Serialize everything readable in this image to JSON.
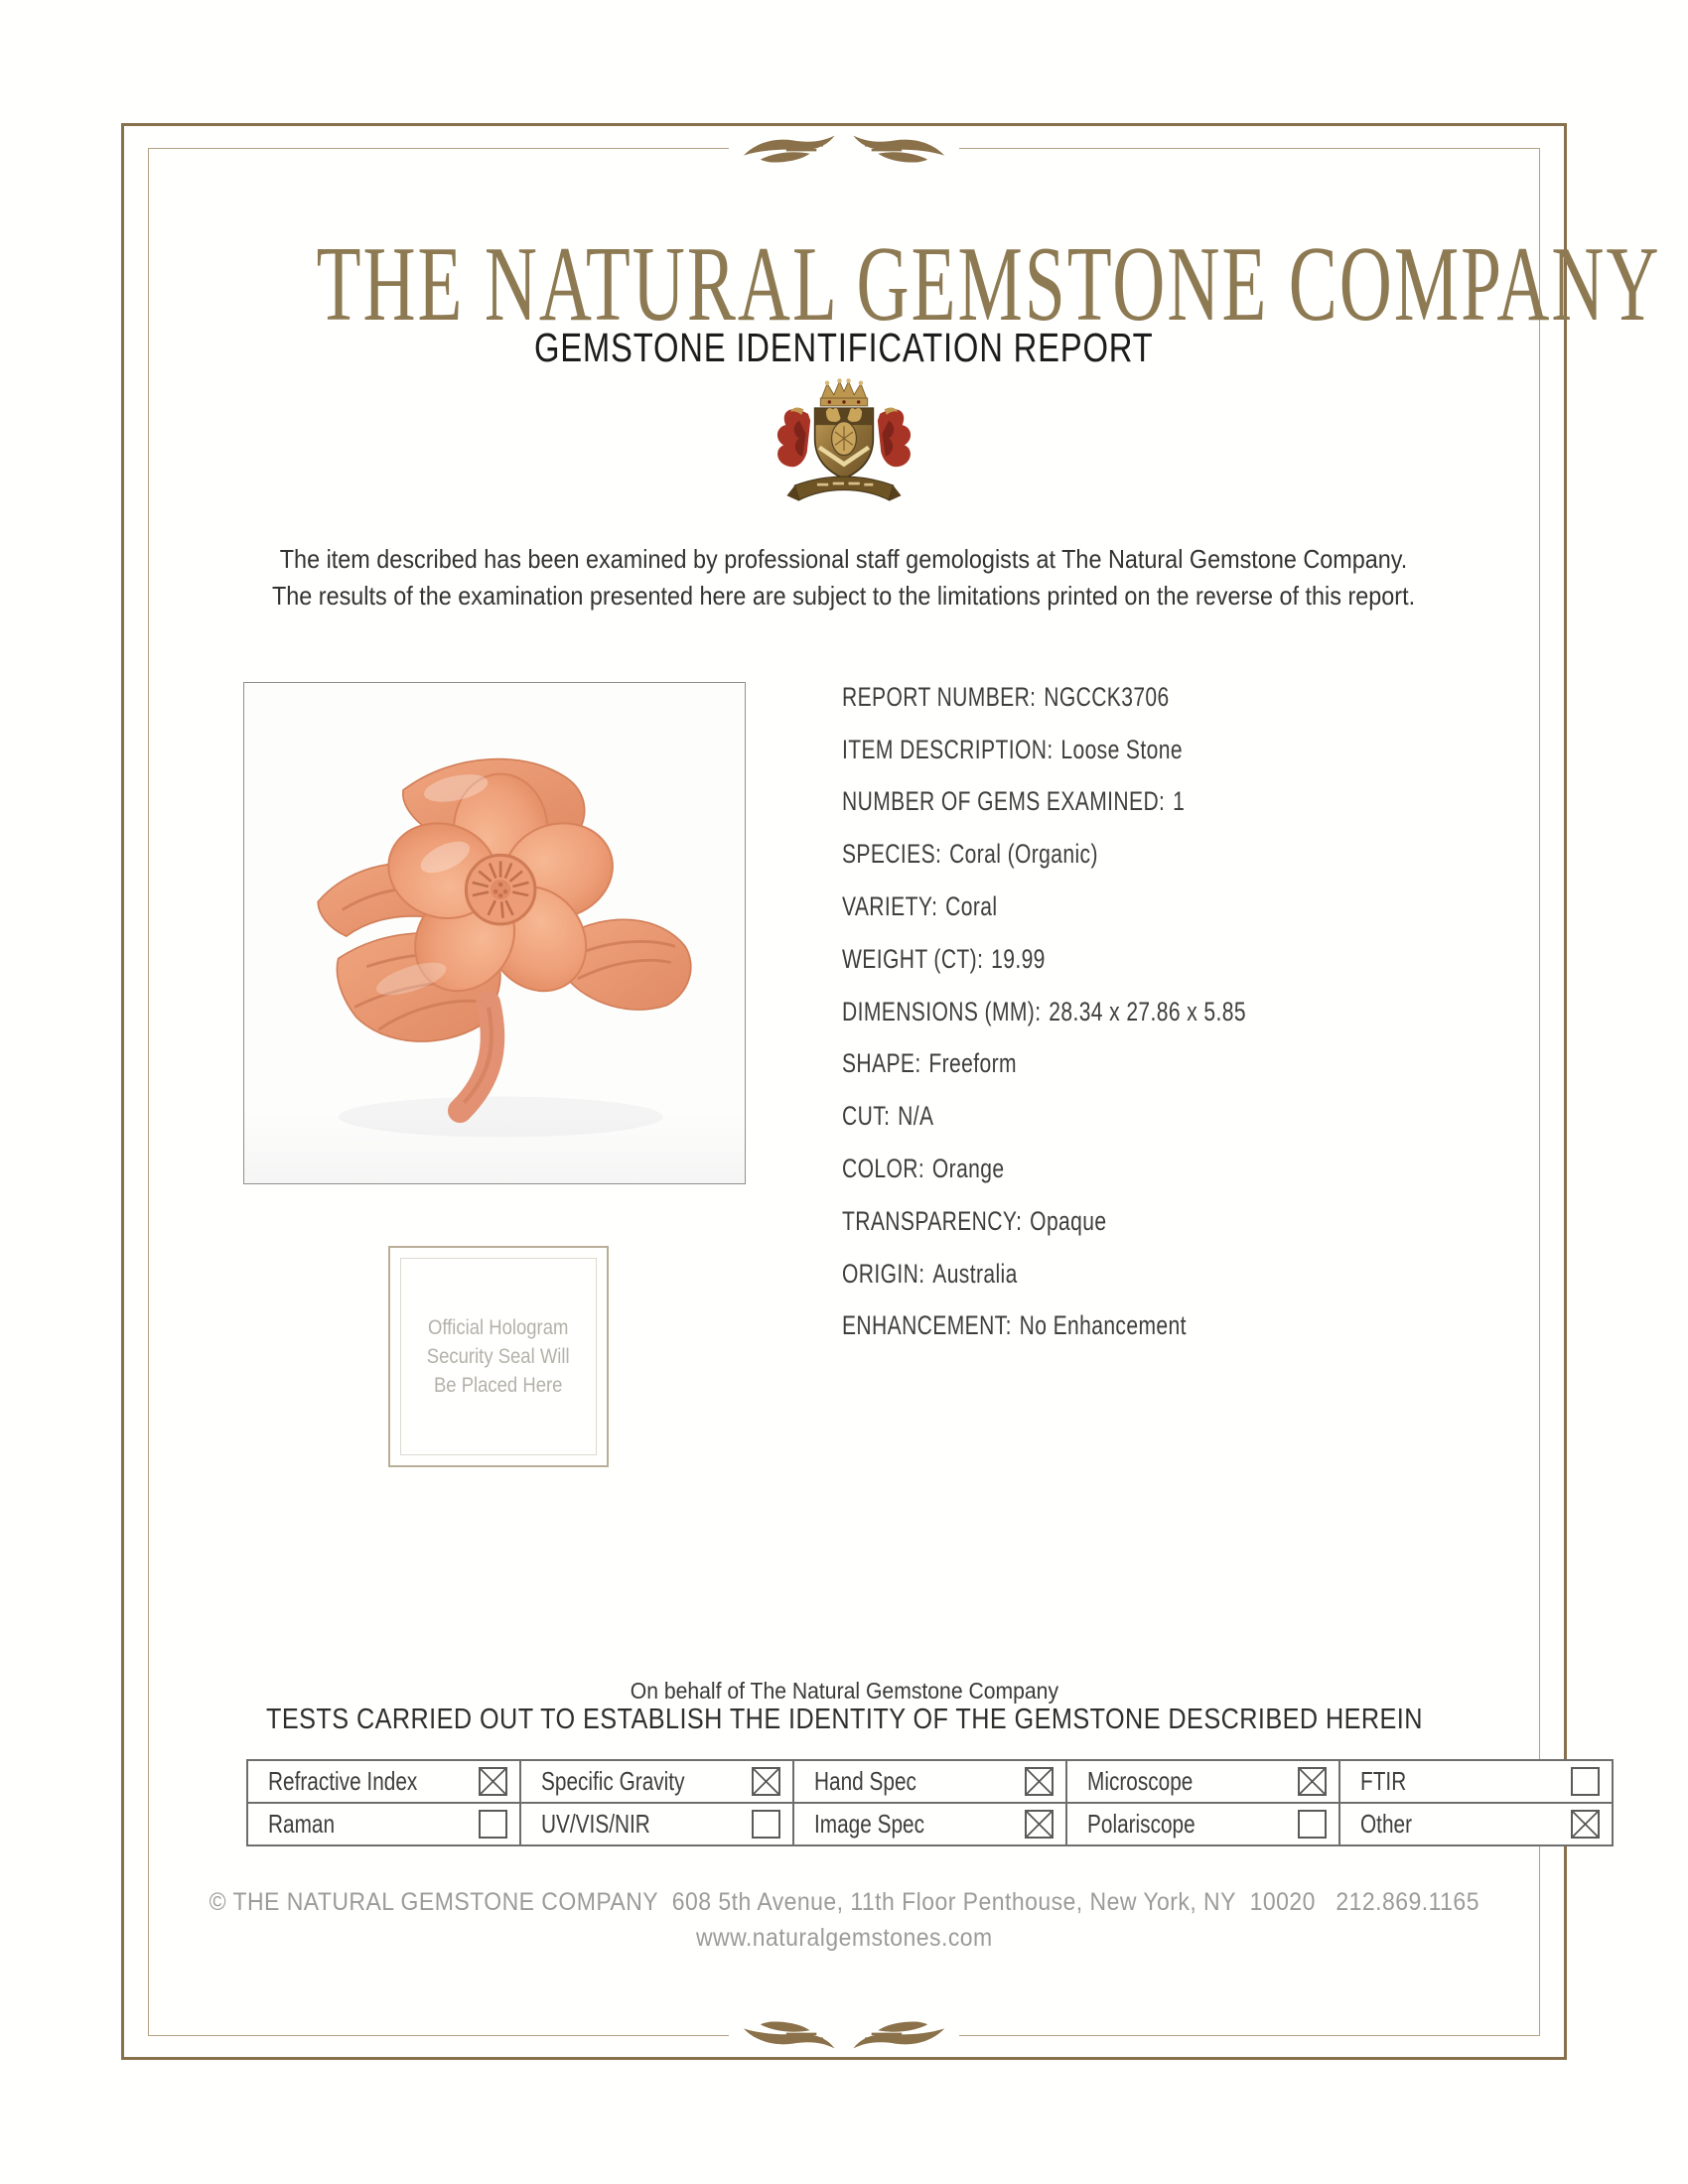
{
  "colors": {
    "frame_gold": "#87704b",
    "inner_frame_tan": "#b2a283",
    "title_bronze": "#8d7a52",
    "text_dark": "#3e3e3e",
    "muted_gray": "#9b9b9b",
    "hologram_gray": "#b3b1a8",
    "table_line": "#6e6e6e",
    "coral_orange": "#ec9d77",
    "crest_red": "#a83425",
    "crest_gold": "#bd9750"
  },
  "header": {
    "company_name": "THE NATURAL GEMSTONE COMPANY",
    "report_type": "GEMSTONE IDENTIFICATION REPORT"
  },
  "icons": {
    "crest": "company-crest",
    "flourish": "flourish-divider",
    "gem_photo": "coral-flower-carving"
  },
  "intro": {
    "line1": "The item described has been examined by professional staff gemologists at The Natural Gemstone Company.",
    "line2": "The results of the examination presented here are subject to the limitations printed on the reverse of this report."
  },
  "report_fields": [
    {
      "label": "REPORT NUMBER:",
      "value": "NGCCK3706"
    },
    {
      "label": "ITEM DESCRIPTION:",
      "value": "Loose Stone"
    },
    {
      "label": "NUMBER OF GEMS EXAMINED:",
      "value": "1"
    },
    {
      "label": "SPECIES:",
      "value": "Coral (Organic)"
    },
    {
      "label": "VARIETY:",
      "value": "Coral"
    },
    {
      "label": "WEIGHT (CT):",
      "value": "19.99"
    },
    {
      "label": "DIMENSIONS (MM):",
      "value": "28.34 x 27.86 x 5.85"
    },
    {
      "label": "SHAPE:",
      "value": "Freeform"
    },
    {
      "label": "CUT:",
      "value": "N/A"
    },
    {
      "label": "COLOR:",
      "value": "Orange"
    },
    {
      "label": "TRANSPARENCY:",
      "value": "Opaque"
    },
    {
      "label": "ORIGIN:",
      "value": "Australia"
    },
    {
      "label": "ENHANCEMENT:",
      "value": "No Enhancement"
    }
  ],
  "hologram": {
    "line1": "Official Hologram",
    "line2": "Security Seal Will",
    "line3": "Be Placed Here"
  },
  "tests": {
    "on_behalf": "On behalf of The Natural Gemstone Company",
    "heading": "TESTS CARRIED OUT TO ESTABLISH THE IDENTITY OF THE GEMSTONE DESCRIBED HEREIN",
    "rows": [
      [
        {
          "label": "Refractive Index",
          "checked": true
        },
        {
          "label": "Specific Gravity",
          "checked": true
        },
        {
          "label": "Hand Spec",
          "checked": true
        },
        {
          "label": "Microscope",
          "checked": true
        },
        {
          "label": "FTIR",
          "checked": false
        }
      ],
      [
        {
          "label": "Raman",
          "checked": false
        },
        {
          "label": "UV/VIS/NIR",
          "checked": false
        },
        {
          "label": "Image Spec",
          "checked": true
        },
        {
          "label": "Polariscope",
          "checked": false
        },
        {
          "label": "Other",
          "checked": true
        }
      ]
    ]
  },
  "footer": {
    "line1": "© THE NATURAL GEMSTONE COMPANY  608 5th Avenue, 11th Floor Penthouse, New York, NY  10020   212.869.1165",
    "line2": "www.naturalgemstones.com"
  }
}
